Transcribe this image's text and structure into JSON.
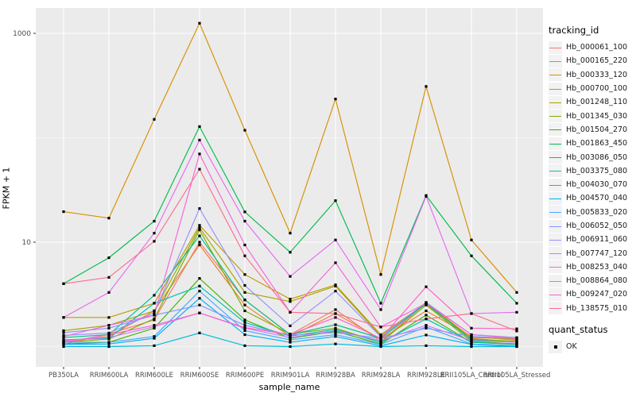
{
  "figure": {
    "y_axis": {
      "title": "FPKM + 1"
    },
    "x_axis": {
      "title": "sample_name"
    },
    "legend": {
      "color_title": "tracking_id",
      "shape_title": "quant_status",
      "shape_items": [
        {
          "label": "OK"
        }
      ]
    },
    "colors": {
      "panel_bg": "#EBEBEB",
      "grid": "#FFFFFF",
      "legend_key_bg": "#F2F2F2",
      "axis_text": "#4D4D4D",
      "tick_mark": "#333333",
      "point": "#000000"
    }
  },
  "chart_data": {
    "type": "line",
    "title": "",
    "xlabel": "sample_name",
    "ylabel": "FPKM + 1",
    "y_scale": "log10",
    "ylim": [
      0.65,
      1800
    ],
    "y_breaks": [
      10,
      1000
    ],
    "y_break_labels": [
      "10",
      "1000"
    ],
    "y_minor_breaks": [
      1,
      100
    ],
    "grid": true,
    "legend_position": "right",
    "point_shape": "filled-square",
    "point_color": "#000000",
    "quant_status_value": "OK",
    "categories": [
      "PB350LA",
      "RRIM600LA",
      "RRIM600LE",
      "RRIM600SE",
      "RRIM600PE",
      "RRIM901LA",
      "RRIM928BA",
      "RRIM928LA",
      "RRIM928LE",
      "RRII105LA_Control",
      "RRII105LA_Stressed"
    ],
    "series": [
      {
        "name": "Hb_000061_100",
        "color": "#F8766D",
        "values": [
          1.05,
          1.32,
          1.8,
          10.0,
          2.8,
          1.3,
          2.26,
          1.12,
          2.6,
          1.2,
          1.1
        ]
      },
      {
        "name": "Hb_000165_220",
        "color": "#EA8331",
        "values": [
          1.12,
          1.25,
          2.2,
          9.4,
          2.5,
          1.25,
          2.07,
          1.18,
          2.2,
          1.25,
          1.15
        ]
      },
      {
        "name": "Hb_000333_120",
        "color": "#D89000",
        "values": [
          19.6,
          17.0,
          150,
          1250,
          118,
          12.2,
          235,
          4.9,
          310,
          10.5,
          3.3
        ]
      },
      {
        "name": "Hb_000700_100",
        "color": "#C09B00",
        "values": [
          1.9,
          1.9,
          2.6,
          14.5,
          4.9,
          2.85,
          3.9,
          1.3,
          2.6,
          1.22,
          1.18
        ]
      },
      {
        "name": "Hb_001248_110",
        "color": "#A3A500",
        "values": [
          1.42,
          1.6,
          2.2,
          13.8,
          3.3,
          2.7,
          3.8,
          1.26,
          2.55,
          1.18,
          1.12
        ]
      },
      {
        "name": "Hb_001345_030",
        "color": "#7CAE00",
        "values": [
          1.1,
          1.18,
          1.85,
          13.1,
          2.2,
          1.32,
          1.5,
          1.1,
          2.5,
          1.12,
          1.06
        ]
      },
      {
        "name": "Hb_001504_270",
        "color": "#39B600",
        "values": [
          1.06,
          1.1,
          1.5,
          4.5,
          1.8,
          1.2,
          1.4,
          1.06,
          2.0,
          1.1,
          1.05
        ]
      },
      {
        "name": "Hb_001863_450",
        "color": "#00BB4E",
        "values": [
          4.0,
          7.1,
          15.9,
          128,
          19.5,
          8.0,
          25.0,
          2.6,
          28.0,
          7.4,
          2.6
        ]
      },
      {
        "name": "Hb_003086_050",
        "color": "#00C087",
        "values": [
          1.22,
          1.3,
          3.1,
          11.5,
          2.8,
          1.3,
          1.62,
          1.2,
          2.6,
          1.16,
          1.1
        ]
      },
      {
        "name": "Hb_003375_080",
        "color": "#00C0B2",
        "values": [
          1.16,
          1.2,
          2.6,
          3.8,
          1.7,
          1.26,
          1.46,
          1.1,
          1.84,
          1.1,
          1.06
        ]
      },
      {
        "name": "Hb_004030_070",
        "color": "#00BCD8",
        "values": [
          1.0,
          1.0,
          1.02,
          1.35,
          1.02,
          1.0,
          1.06,
          1.0,
          1.02,
          1.0,
          1.0
        ]
      },
      {
        "name": "Hb_004570_040",
        "color": "#00B0F6",
        "values": [
          1.05,
          1.06,
          1.2,
          2.9,
          1.3,
          1.1,
          1.25,
          1.02,
          1.29,
          1.05,
          1.0
        ]
      },
      {
        "name": "Hb_005833_020",
        "color": "#49A8FF",
        "values": [
          1.1,
          1.1,
          1.25,
          3.4,
          1.42,
          1.16,
          1.3,
          1.05,
          1.54,
          1.06,
          1.02
        ]
      },
      {
        "name": "Hb_006052_050",
        "color": "#7E96FF",
        "values": [
          1.36,
          1.5,
          2.0,
          2.5,
          1.6,
          1.29,
          1.36,
          1.2,
          1.5,
          1.25,
          1.2
        ]
      },
      {
        "name": "Hb_006911_060",
        "color": "#9590FF",
        "values": [
          1.28,
          1.35,
          2.1,
          21.0,
          3.85,
          1.58,
          3.4,
          1.24,
          2.65,
          1.3,
          1.22
        ]
      },
      {
        "name": "Hb_007747_120",
        "color": "#C77CFF",
        "values": [
          1.14,
          1.22,
          1.55,
          2.1,
          1.5,
          1.22,
          1.42,
          1.14,
          1.6,
          1.14,
          1.1
        ]
      },
      {
        "name": "Hb_008253_040",
        "color": "#E76BF3",
        "values": [
          1.9,
          3.3,
          12.2,
          95.0,
          15.9,
          4.7,
          10.5,
          2.26,
          27.5,
          2.07,
          2.13
        ]
      },
      {
        "name": "Hb_008864_080",
        "color": "#FA62DB",
        "values": [
          1.25,
          1.6,
          2.0,
          70.0,
          9.4,
          2.13,
          6.35,
          1.54,
          2.6,
          1.3,
          1.2
        ]
      },
      {
        "name": "Hb_009247_020",
        "color": "#FF61C9",
        "values": [
          1.1,
          1.3,
          1.6,
          2.1,
          1.52,
          1.3,
          1.9,
          1.2,
          3.74,
          1.5,
          1.48
        ]
      },
      {
        "name": "Hb_138575_010",
        "color": "#FF6C91",
        "values": [
          4.0,
          4.6,
          10.2,
          50.0,
          7.4,
          2.13,
          2.07,
          1.54,
          1.84,
          2.07,
          1.41
        ]
      }
    ]
  }
}
